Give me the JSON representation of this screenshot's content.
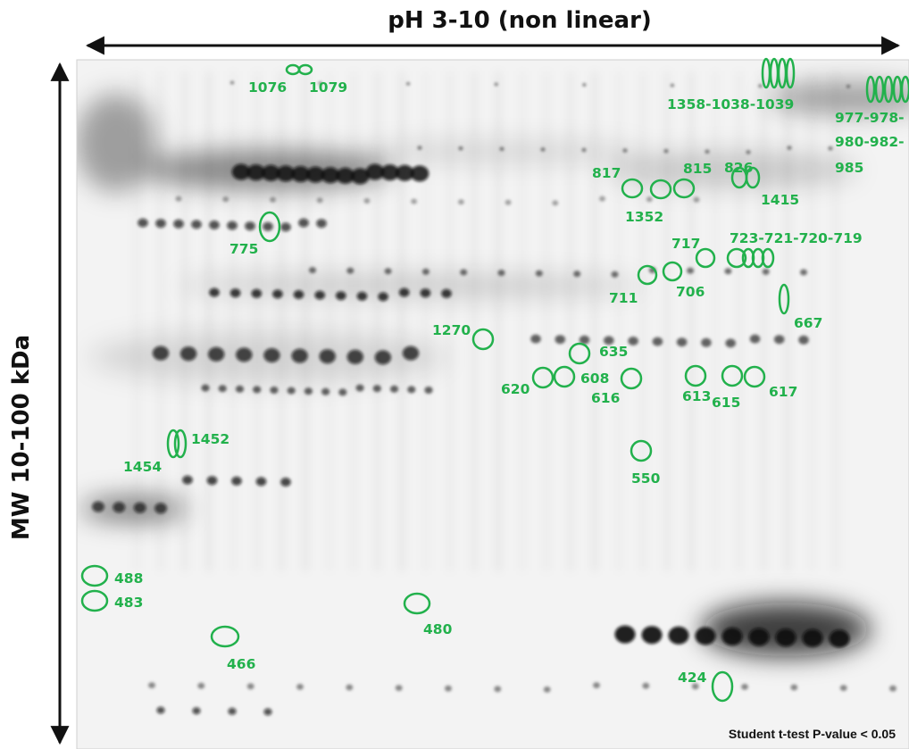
{
  "figure": {
    "top_axis_label": "pH 3-10 (non linear)",
    "left_axis_label": "MW 10-100 kDa",
    "footnote": "Student t-test P-value < 0.05",
    "marker_color": "#22b14c",
    "gel_background": "#f3f3f3",
    "spot_color": "#0a0a0a"
  },
  "spot_labels": [
    "1076",
    "1079",
    "1358-1038-1039",
    "977-978-",
    "980-982-",
    "985",
    "817",
    "815",
    "826",
    "1415",
    "1352",
    "775",
    "717",
    "723-721-720-719",
    "711",
    "706",
    "667",
    "1270",
    "635",
    "620",
    "608",
    "616",
    "613",
    "615",
    "617",
    "1452",
    "1454",
    "550",
    "488",
    "483",
    "480",
    "466",
    "424"
  ]
}
